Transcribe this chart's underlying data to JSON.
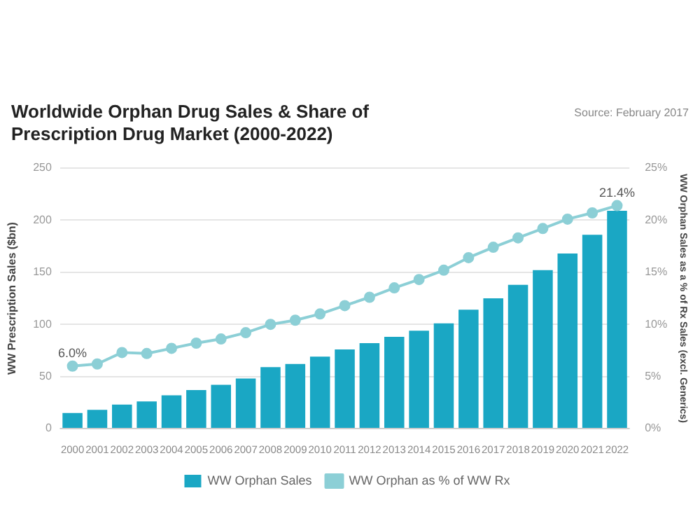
{
  "chart_data": {
    "type": "bar",
    "title": "Worldwide Orphan Drug Sales & Share of Prescription Drug Market (2000-2022)",
    "annotations": [
      "Source: February 2017"
    ],
    "categories": [
      "2000",
      "2001",
      "2002",
      "2003",
      "2004",
      "2005",
      "2006",
      "2007",
      "2008",
      "2009",
      "2010",
      "2011",
      "2012",
      "2013",
      "2014",
      "2015",
      "2016",
      "2017",
      "2018",
      "2019",
      "2020",
      "2021",
      "2022"
    ],
    "series": [
      {
        "name": "WW Orphan Sales",
        "color": "#1aa7c4",
        "values": [
          15,
          18,
          23,
          26,
          32,
          37,
          42,
          48,
          59,
          62,
          69,
          76,
          82,
          88,
          94,
          101,
          114,
          125,
          138,
          152,
          168,
          186,
          209
        ]
      },
      {
        "name": "WW Orphan as % of WW Rx",
        "type": "line",
        "axis": "y2",
        "color": "#8ccfd6",
        "values": [
          6.0,
          6.2,
          7.3,
          7.2,
          7.7,
          8.2,
          8.6,
          9.2,
          10.0,
          10.4,
          11.0,
          11.8,
          12.6,
          13.5,
          14.3,
          15.2,
          16.4,
          17.4,
          18.3,
          19.2,
          20.1,
          20.7,
          21.4
        ],
        "value_labels": [
          "6.0%",
          null,
          null,
          null,
          null,
          null,
          null,
          null,
          null,
          null,
          null,
          null,
          null,
          null,
          null,
          null,
          null,
          null,
          null,
          null,
          null,
          null,
          "21.4%"
        ]
      }
    ],
    "ylabel": "WW Prescription Sales ($bn)",
    "y2label": "WW Orphan Sales as a % of Rx Sales (excl. Generics)",
    "ylim": [
      0,
      250
    ],
    "yticks": [
      0,
      50,
      100,
      150,
      200,
      250
    ],
    "y2lim": [
      0,
      25
    ],
    "y2ticks": [
      {
        "value": 0,
        "label": "0%"
      },
      {
        "value": 5,
        "label": "5%"
      },
      {
        "value": 10,
        "label": "10%"
      },
      {
        "value": 15,
        "label": "15%"
      },
      {
        "value": 20,
        "label": "20%"
      },
      {
        "value": 25,
        "label": "25%"
      }
    ],
    "grid": "y",
    "legend": "bottom",
    "marker": "circle"
  }
}
